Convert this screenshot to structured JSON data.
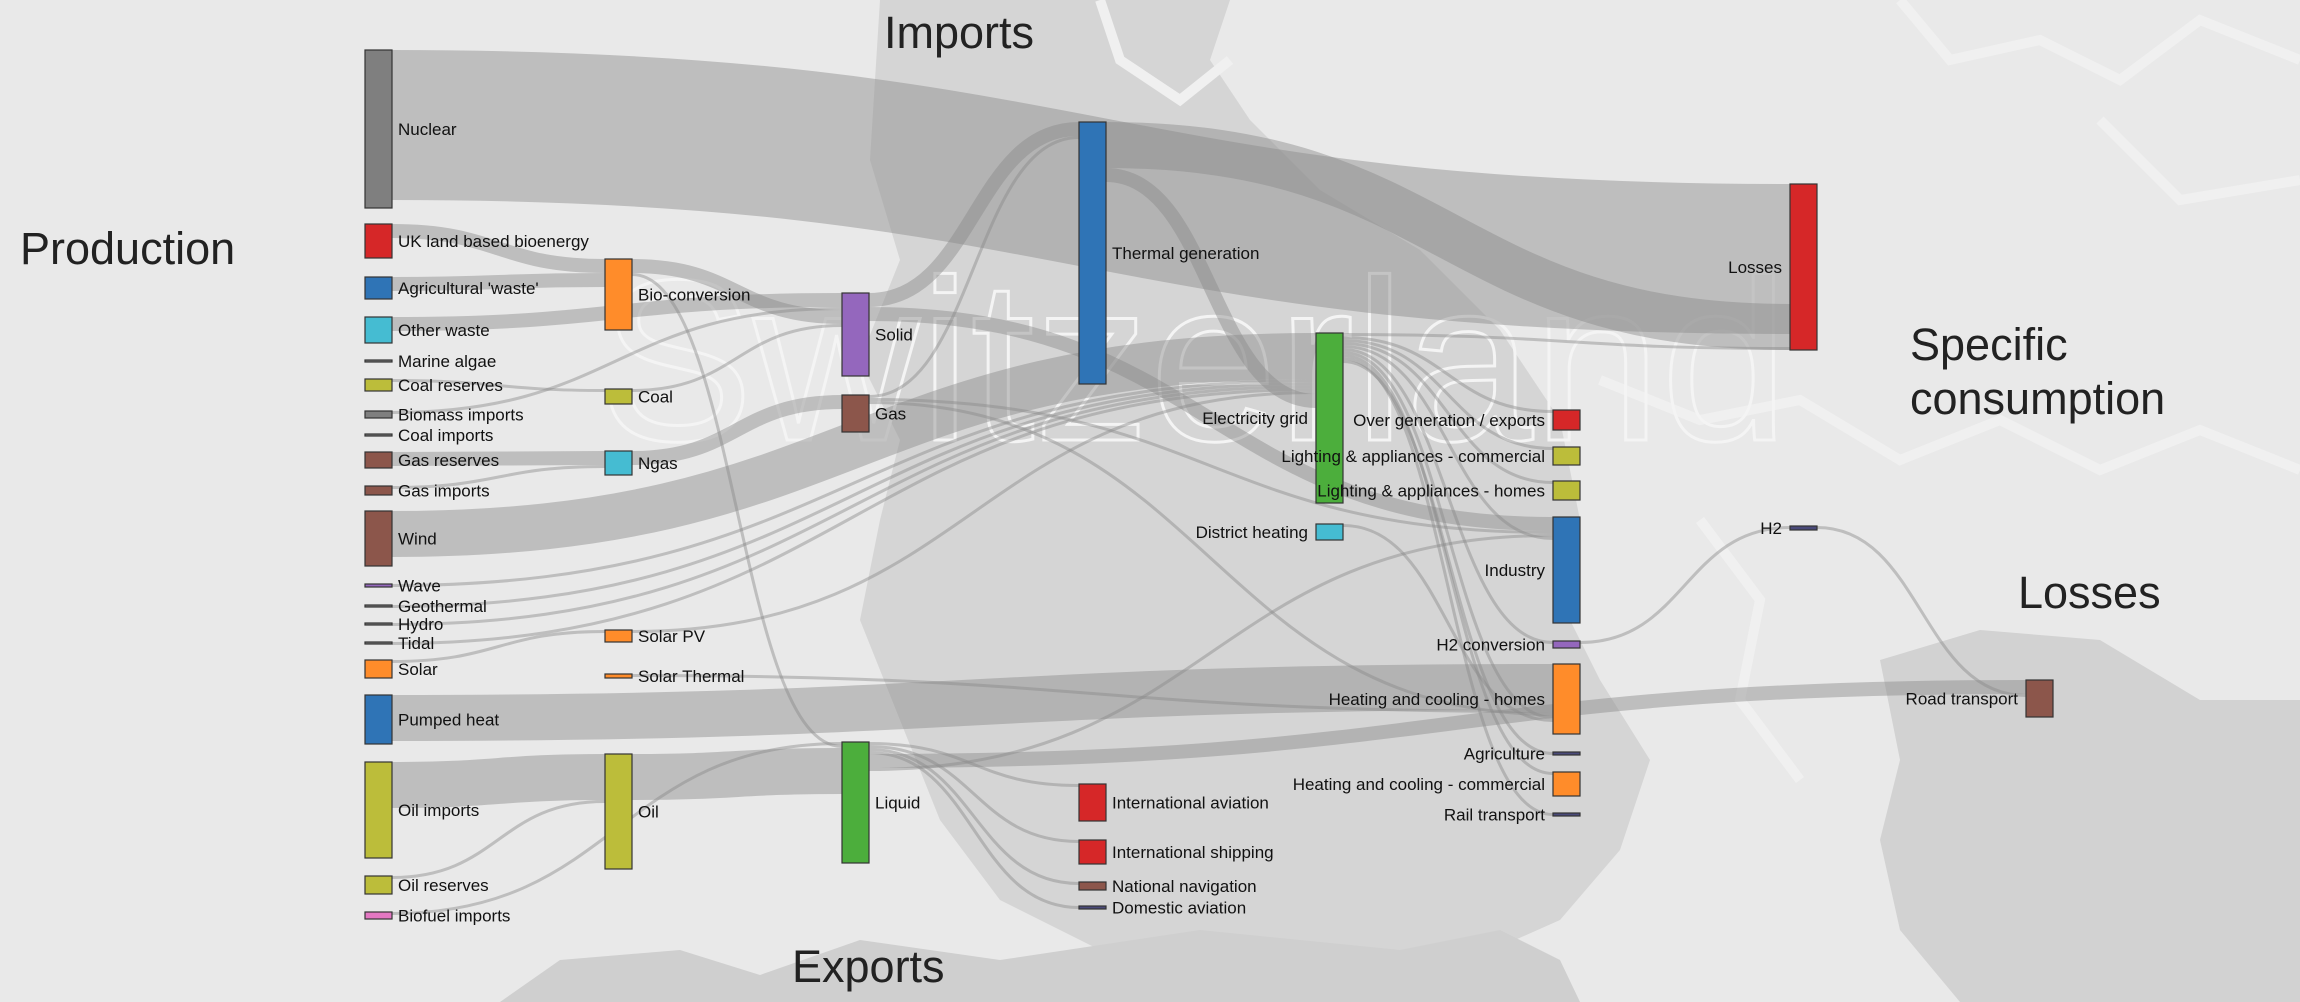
{
  "section_titles": {
    "production": "Production",
    "imports": "Imports",
    "specific": "Specific\nconsumption",
    "losses": "Losses",
    "exports": "Exports"
  },
  "watermark": "Switzerland",
  "colors": {
    "gray": "#7f7f7f",
    "red": "#d62728",
    "blue": "#2f74b6",
    "cyan": "#45bcd2",
    "olive": "#bcbd3a",
    "brown": "#8c564b",
    "orange": "#ff8c2a",
    "purple": "#9467bd",
    "green": "#4cae3c",
    "pink": "#e377c2",
    "navy": "#4a4a7a",
    "flow": "#8a8a8a"
  },
  "nodes": [
    {
      "id": "nuclear",
      "label": "Nuclear",
      "color": "gray"
    },
    {
      "id": "uk_land_bioenergy",
      "label": "UK land based bioenergy",
      "color": "red"
    },
    {
      "id": "agricultural_waste",
      "label": "Agricultural 'waste'",
      "color": "blue"
    },
    {
      "id": "other_waste",
      "label": "Other waste",
      "color": "cyan"
    },
    {
      "id": "marine_algae",
      "label": "Marine algae",
      "color": "gray"
    },
    {
      "id": "coal_reserves",
      "label": "Coal reserves",
      "color": "olive"
    },
    {
      "id": "biomass_imports",
      "label": "Biomass imports",
      "color": "gray"
    },
    {
      "id": "coal_imports",
      "label": "Coal imports",
      "color": "gray"
    },
    {
      "id": "gas_reserves",
      "label": "Gas reserves",
      "color": "brown"
    },
    {
      "id": "gas_imports",
      "label": "Gas imports",
      "color": "brown"
    },
    {
      "id": "wind",
      "label": "Wind",
      "color": "brown"
    },
    {
      "id": "wave",
      "label": "Wave",
      "color": "purple"
    },
    {
      "id": "geothermal",
      "label": "Geothermal",
      "color": "gray"
    },
    {
      "id": "hydro",
      "label": "Hydro",
      "color": "gray"
    },
    {
      "id": "tidal",
      "label": "Tidal",
      "color": "gray"
    },
    {
      "id": "solar",
      "label": "Solar",
      "color": "orange"
    },
    {
      "id": "pumped_heat",
      "label": "Pumped heat",
      "color": "blue"
    },
    {
      "id": "oil_imports",
      "label": "Oil imports",
      "color": "olive"
    },
    {
      "id": "oil_reserves",
      "label": "Oil reserves",
      "color": "olive"
    },
    {
      "id": "biofuel_imports",
      "label": "Biofuel imports",
      "color": "pink"
    },
    {
      "id": "bio_conversion",
      "label": "Bio-conversion",
      "color": "orange"
    },
    {
      "id": "coal",
      "label": "Coal",
      "color": "olive"
    },
    {
      "id": "ngas",
      "label": "Ngas",
      "color": "cyan"
    },
    {
      "id": "solar_pv",
      "label": "Solar PV",
      "color": "orange"
    },
    {
      "id": "solar_thermal",
      "label": "Solar Thermal",
      "color": "orange"
    },
    {
      "id": "oil",
      "label": "Oil",
      "color": "olive"
    },
    {
      "id": "solid",
      "label": "Solid",
      "color": "purple"
    },
    {
      "id": "gas",
      "label": "Gas",
      "color": "brown"
    },
    {
      "id": "liquid",
      "label": "Liquid",
      "color": "green"
    },
    {
      "id": "thermal_generation",
      "label": "Thermal generation",
      "color": "blue"
    },
    {
      "id": "international_aviation",
      "label": "International aviation",
      "color": "red"
    },
    {
      "id": "international_shipping",
      "label": "International shipping",
      "color": "red"
    },
    {
      "id": "national_navigation",
      "label": "National navigation",
      "color": "brown"
    },
    {
      "id": "domestic_aviation",
      "label": "Domestic aviation",
      "color": "navy"
    },
    {
      "id": "electricity_grid",
      "label": "Electricity grid",
      "color": "green"
    },
    {
      "id": "district_heating",
      "label": "District heating",
      "color": "cyan"
    },
    {
      "id": "over_generation_exports",
      "label": "Over generation / exports",
      "color": "red"
    },
    {
      "id": "lighting_commercial",
      "label": "Lighting & appliances - commercial",
      "color": "olive"
    },
    {
      "id": "lighting_homes",
      "label": "Lighting & appliances - homes",
      "color": "olive"
    },
    {
      "id": "industry",
      "label": "Industry",
      "color": "blue"
    },
    {
      "id": "h2_conversion",
      "label": "H2 conversion",
      "color": "purple"
    },
    {
      "id": "heating_homes",
      "label": "Heating and cooling - homes",
      "color": "orange"
    },
    {
      "id": "agriculture",
      "label": "Agriculture",
      "color": "navy"
    },
    {
      "id": "heating_commercial",
      "label": "Heating and cooling - commercial",
      "color": "orange"
    },
    {
      "id": "rail_transport",
      "label": "Rail transport",
      "color": "navy"
    },
    {
      "id": "losses",
      "label": "Losses",
      "color": "red"
    },
    {
      "id": "h2",
      "label": "H2",
      "color": "navy"
    },
    {
      "id": "road_transport",
      "label": "Road transport",
      "color": "brown"
    }
  ],
  "links": [
    {
      "source": "nuclear",
      "target": "losses",
      "width": "l"
    },
    {
      "source": "uk_land_bioenergy",
      "target": "bio_conversion",
      "width": "s"
    },
    {
      "source": "agricultural_waste",
      "target": "bio_conversion",
      "width": "s"
    },
    {
      "source": "other_waste",
      "target": "solid",
      "width": "s"
    },
    {
      "source": "coal_reserves",
      "target": "coal",
      "width": "xs"
    },
    {
      "source": "biomass_imports",
      "target": "solid",
      "width": "xs"
    },
    {
      "source": "gas_reserves",
      "target": "ngas",
      "width": "s"
    },
    {
      "source": "gas_imports",
      "target": "ngas",
      "width": "xs"
    },
    {
      "source": "wind",
      "target": "electricity_grid",
      "width": "m"
    },
    {
      "source": "wave",
      "target": "electricity_grid",
      "width": "xs"
    },
    {
      "source": "geothermal",
      "target": "electricity_grid",
      "width": "xs"
    },
    {
      "source": "hydro",
      "target": "electricity_grid",
      "width": "xs"
    },
    {
      "source": "tidal",
      "target": "electricity_grid",
      "width": "xs"
    },
    {
      "source": "solar",
      "target": "solar_pv",
      "width": "xs"
    },
    {
      "source": "pumped_heat",
      "target": "heating_homes",
      "width": "m"
    },
    {
      "source": "oil_imports",
      "target": "oil",
      "width": "m"
    },
    {
      "source": "oil_reserves",
      "target": "oil",
      "width": "xs"
    },
    {
      "source": "biofuel_imports",
      "target": "liquid",
      "width": "xs"
    },
    {
      "source": "bio_conversion",
      "target": "solid",
      "width": "s"
    },
    {
      "source": "bio_conversion",
      "target": "liquid",
      "width": "xs"
    },
    {
      "source": "coal",
      "target": "solid",
      "width": "xs"
    },
    {
      "source": "ngas",
      "target": "gas",
      "width": "s"
    },
    {
      "source": "solar_pv",
      "target": "electricity_grid",
      "width": "xs"
    },
    {
      "source": "solar_thermal",
      "target": "heating_homes",
      "width": "xs"
    },
    {
      "source": "oil",
      "target": "liquid",
      "width": "m"
    },
    {
      "source": "solid",
      "target": "thermal_generation",
      "width": "s"
    },
    {
      "source": "solid",
      "target": "industry",
      "width": "s"
    },
    {
      "source": "gas",
      "target": "thermal_generation",
      "width": "xs"
    },
    {
      "source": "gas",
      "target": "industry",
      "width": "xs"
    },
    {
      "source": "gas",
      "target": "heating_homes",
      "width": "xs"
    },
    {
      "source": "liquid",
      "target": "international_aviation",
      "width": "xs"
    },
    {
      "source": "liquid",
      "target": "international_shipping",
      "width": "xs"
    },
    {
      "source": "liquid",
      "target": "national_navigation",
      "width": "xs"
    },
    {
      "source": "liquid",
      "target": "domestic_aviation",
      "width": "xs"
    },
    {
      "source": "liquid",
      "target": "road_transport",
      "width": "s"
    },
    {
      "source": "liquid",
      "target": "industry",
      "width": "xs"
    },
    {
      "source": "thermal_generation",
      "target": "losses",
      "width": "m"
    },
    {
      "source": "thermal_generation",
      "target": "electricity_grid",
      "width": "s"
    },
    {
      "source": "electricity_grid",
      "target": "losses",
      "width": "xs"
    },
    {
      "source": "electricity_grid",
      "target": "over_generation_exports",
      "width": "xs"
    },
    {
      "source": "electricity_grid",
      "target": "lighting_commercial",
      "width": "xs"
    },
    {
      "source": "electricity_grid",
      "target": "lighting_homes",
      "width": "xs"
    },
    {
      "source": "electricity_grid",
      "target": "industry",
      "width": "xs"
    },
    {
      "source": "electricity_grid",
      "target": "h2_conversion",
      "width": "xs"
    },
    {
      "source": "electricity_grid",
      "target": "heating_homes",
      "width": "xs"
    },
    {
      "source": "electricity_grid",
      "target": "heating_commercial",
      "width": "xs"
    },
    {
      "source": "electricity_grid",
      "target": "rail_transport",
      "width": "xs"
    },
    {
      "source": "electricity_grid",
      "target": "agriculture",
      "width": "xs"
    },
    {
      "source": "district_heating",
      "target": "heating_homes",
      "width": "xs"
    },
    {
      "source": "h2_conversion",
      "target": "h2",
      "width": "xs"
    },
    {
      "source": "h2",
      "target": "road_transport",
      "width": "xs"
    }
  ]
}
